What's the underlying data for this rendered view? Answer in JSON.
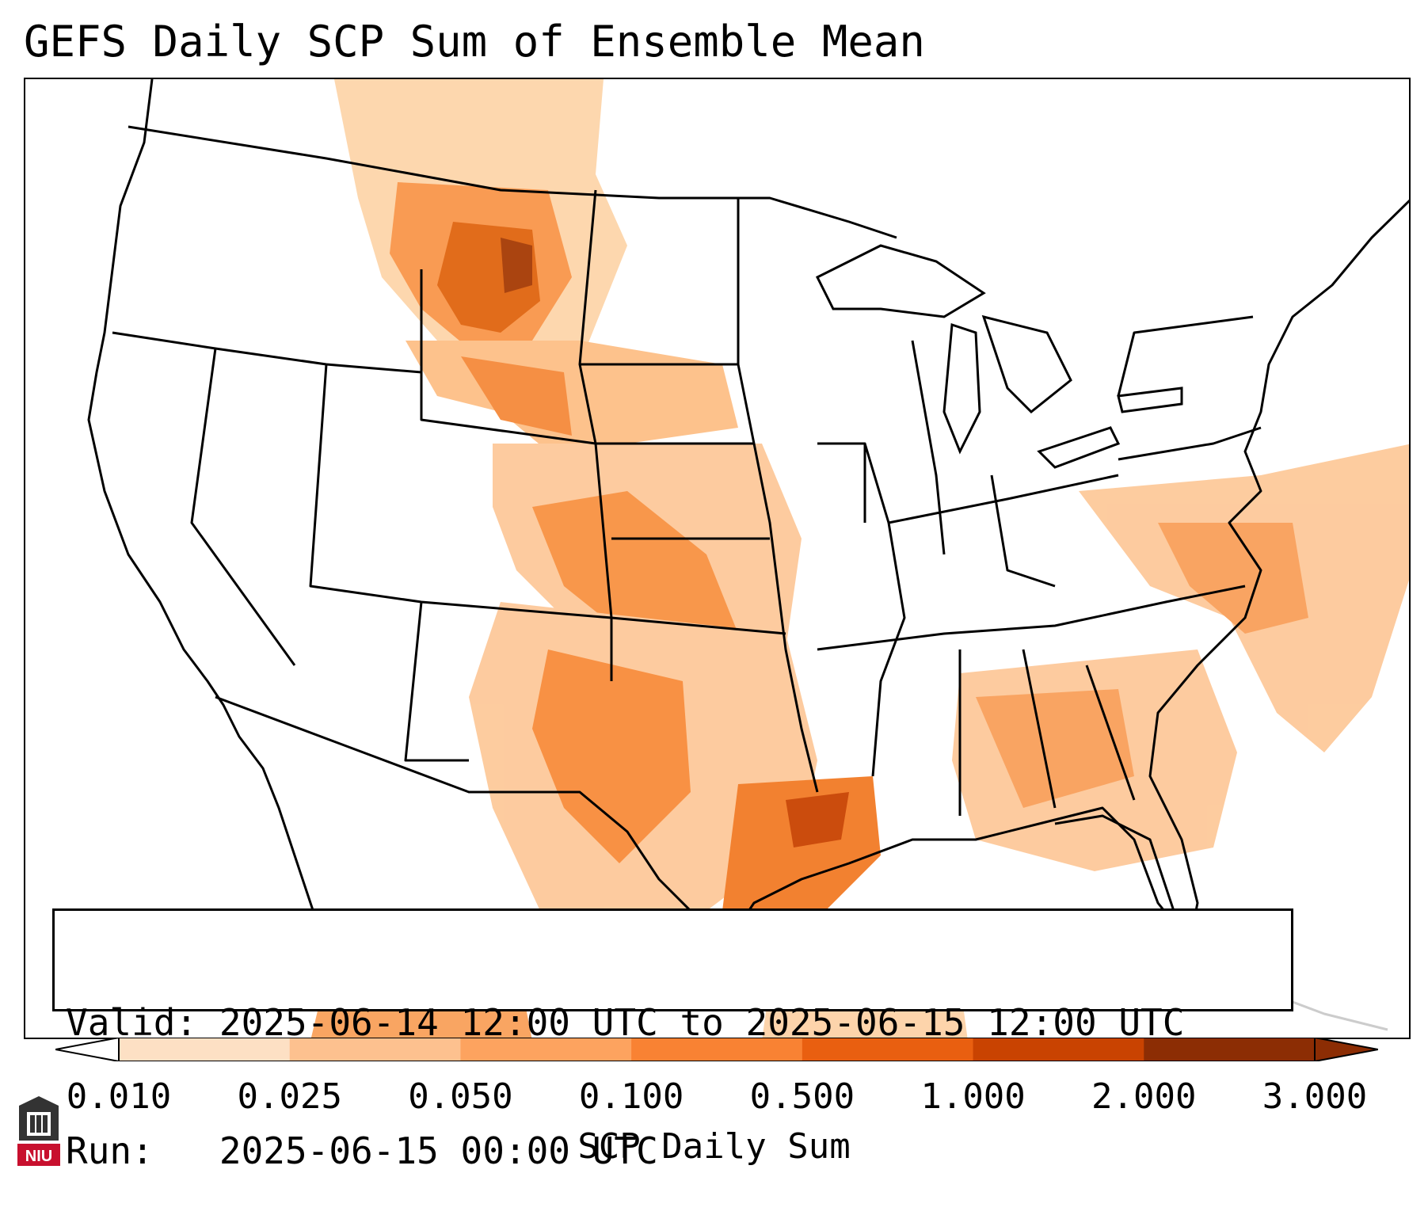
{
  "title": "GEFS Daily SCP Sum of Ensemble Mean",
  "info": {
    "valid_label": "Valid:",
    "valid_value": "2025-06-14 12:00 UTC to 2025-06-15 12:00 UTC",
    "run_label": "Run:",
    "run_value": "2025-06-15 00:00 UTC"
  },
  "colorbar": {
    "label": "SCP Daily Sum",
    "ticks": [
      "0.010",
      "0.025",
      "0.050",
      "0.100",
      "0.500",
      "1.000",
      "2.000",
      "3.000"
    ],
    "colors": [
      "#fff3e6",
      "#fde0c4",
      "#fdc18f",
      "#fda35f",
      "#f98233",
      "#e95f10",
      "#c94301",
      "#8c2d04"
    ]
  },
  "logo": {
    "text": "NIU"
  }
}
